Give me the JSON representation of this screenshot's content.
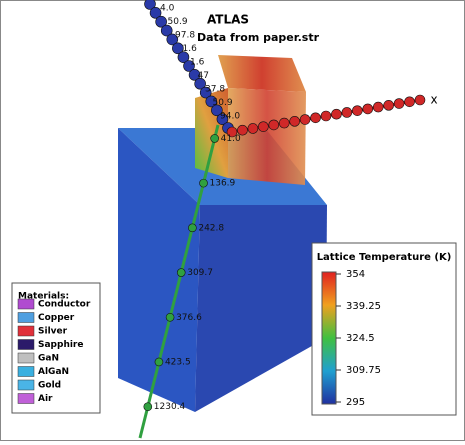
{
  "header": {
    "title": "ATLAS",
    "subtitle": "Data from paper.str"
  },
  "axes": {
    "x_label": "x",
    "green_labels": [
      "41.0",
      "136.9",
      "242.8",
      "309.7",
      "376.6",
      "423.5",
      "1230.4"
    ],
    "blue_labels": [
      "4.0",
      "50.9",
      "97.8",
      "1.6",
      "1.6",
      "47",
      "37.8",
      "50.9",
      "94.0"
    ]
  },
  "colorbar": {
    "title": "Lattice Temperature (K)",
    "ticks": [
      "354",
      "339.25",
      "324.5",
      "309.75",
      "295"
    ]
  },
  "materials": {
    "title": "Materials:",
    "items": [
      {
        "label": "Conductor",
        "color": "#b04bd0"
      },
      {
        "label": "Copper",
        "color": "#4f9fe0"
      },
      {
        "label": "Silver",
        "color": "#e0303a"
      },
      {
        "label": "Sapphire",
        "color": "#2b1a6a"
      },
      {
        "label": "GaN",
        "color": "#bfbfbf"
      },
      {
        "label": "AlGaN",
        "color": "#3ab0e0"
      },
      {
        "label": "Gold",
        "color": "#4ab4e6"
      },
      {
        "label": "Air",
        "color": "#c060d8"
      }
    ]
  }
}
